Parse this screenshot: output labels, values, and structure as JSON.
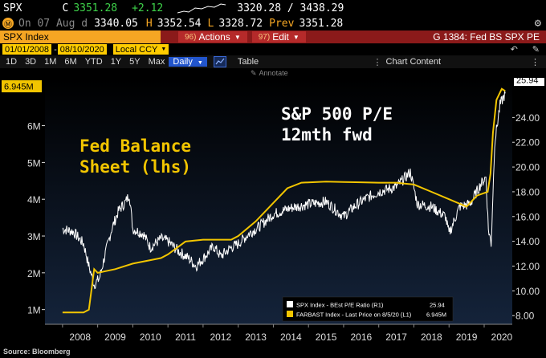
{
  "ticker": {
    "symbol": "SPX",
    "last_label": "C",
    "last": "3351.28",
    "change": "+2.12",
    "range": "3320.28 / 3438.29",
    "date_label": "On 07 Aug d",
    "open": "3340.05",
    "high_label": "H",
    "high": "3352.54",
    "low_label": "L",
    "low": "3328.72",
    "prev_label": "Prev",
    "prev": "3351.28"
  },
  "toolbar": {
    "security": "SPX Index",
    "actions_num": "96)",
    "actions": "Actions",
    "edit_num": "97)",
    "edit": "Edit",
    "graph_title": "G 1384: Fed BS SPX PE"
  },
  "dates": {
    "start": "01/01/2008",
    "end": "08/10/2020",
    "currency": "Local CCY"
  },
  "periods": [
    "1D",
    "3D",
    "1M",
    "6M",
    "YTD",
    "1Y",
    "5Y",
    "Max"
  ],
  "frequency": "Daily",
  "table_label": "Table",
  "chart_content_label": "Chart Content",
  "annotate_label": "Annotate",
  "chart_data": {
    "type": "line",
    "annotations": {
      "pe_title_1": "S&P 500 P/E",
      "pe_title_2": "12mth fwd",
      "fed_title_1": "Fed Balance",
      "fed_title_2": "Sheet (lhs)"
    },
    "x_ticks": [
      "2008",
      "2009",
      "2010",
      "2011",
      "2012",
      "2013",
      "2014",
      "2015",
      "2016",
      "2017",
      "2018",
      "2019",
      "2020"
    ],
    "left_axis": {
      "ticks": [
        "1M",
        "2M",
        "3M",
        "4M",
        "5M",
        "6M"
      ],
      "values": [
        1,
        2,
        3,
        4,
        5,
        6
      ],
      "ylim": [
        0.6,
        7.3
      ]
    },
    "right_axis": {
      "ticks": [
        "8.00",
        "10.00",
        "12.00",
        "14.00",
        "16.00",
        "18.00",
        "20.00",
        "22.00",
        "24.00"
      ],
      "values": [
        8,
        10,
        12,
        14,
        16,
        18,
        20,
        22,
        24
      ],
      "ylim": [
        7.3,
        27.2
      ]
    },
    "last_left": "6.945M",
    "last_right": "25.94",
    "series": [
      {
        "name": "SPX Index - BEst P/E Ratio (R1)",
        "color": "#ffffff",
        "axis": "right",
        "last": "25.94",
        "x": [
          2008.0,
          2008.3,
          2008.6,
          2008.75,
          2008.9,
          2009.05,
          2009.2,
          2009.4,
          2009.6,
          2009.8,
          2009.9,
          2010.0,
          2010.3,
          2010.5,
          2010.8,
          2011.0,
          2011.3,
          2011.6,
          2011.8,
          2012.0,
          2012.3,
          2012.5,
          2012.8,
          2013.0,
          2013.3,
          2013.6,
          2014.0,
          2014.5,
          2015.0,
          2015.5,
          2016.0,
          2016.3,
          2016.6,
          2017.0,
          2017.5,
          2017.9,
          2018.1,
          2018.5,
          2018.9,
          2019.0,
          2019.3,
          2019.6,
          2019.9,
          2020.05,
          2020.12,
          2020.2,
          2020.3,
          2020.45,
          2020.6
        ],
        "y": [
          15.0,
          14.8,
          13.8,
          12.0,
          10.5,
          11.0,
          12.8,
          15.0,
          16.5,
          17.2,
          17.8,
          15.0,
          14.6,
          13.5,
          14.2,
          14.0,
          13.2,
          12.6,
          12.0,
          12.6,
          13.6,
          12.8,
          13.5,
          13.8,
          14.6,
          15.2,
          16.2,
          16.7,
          17.0,
          17.2,
          16.0,
          16.8,
          17.4,
          18.0,
          18.4,
          19.6,
          17.0,
          16.8,
          16.0,
          14.6,
          16.8,
          17.0,
          18.6,
          19.2,
          15.0,
          13.8,
          22.0,
          25.0,
          25.94
        ]
      },
      {
        "name": "FARBAST Index - Last Price on 8/5/20 (L1)",
        "color": "#f2c500",
        "axis": "left",
        "last": "6.945M",
        "x": [
          2008.0,
          2008.6,
          2008.75,
          2008.9,
          2009.0,
          2009.5,
          2010.0,
          2010.8,
          2011.0,
          2011.5,
          2012.0,
          2012.8,
          2013.0,
          2013.5,
          2014.0,
          2014.4,
          2014.8,
          2015.5,
          2016.0,
          2016.5,
          2017.0,
          2017.5,
          2018.0,
          2018.5,
          2019.0,
          2019.5,
          2019.8,
          2020.1,
          2020.18,
          2020.25,
          2020.35,
          2020.5,
          2020.6
        ],
        "y": [
          0.92,
          0.92,
          1.0,
          2.1,
          2.0,
          2.1,
          2.25,
          2.4,
          2.5,
          2.85,
          2.9,
          2.9,
          3.0,
          3.4,
          3.9,
          4.3,
          4.45,
          4.48,
          4.47,
          4.46,
          4.45,
          4.45,
          4.4,
          4.2,
          4.0,
          3.8,
          4.1,
          4.2,
          4.7,
          5.8,
          6.7,
          7.0,
          6.945
        ]
      }
    ]
  },
  "legend": {
    "pe": "SPX Index - BEst P/E Ratio (R1)",
    "pe_value": "25.94",
    "fed": "FARBAST Index - Last Price on 8/5/20 (L1)",
    "fed_value": "6.945M"
  },
  "source": "Source: Bloomberg",
  "colors": {
    "fed": "#f2c500",
    "pe": "#ffffff",
    "plot_top": "#000000",
    "plot_bottom": "#14233a",
    "accent": "#f5a623"
  }
}
